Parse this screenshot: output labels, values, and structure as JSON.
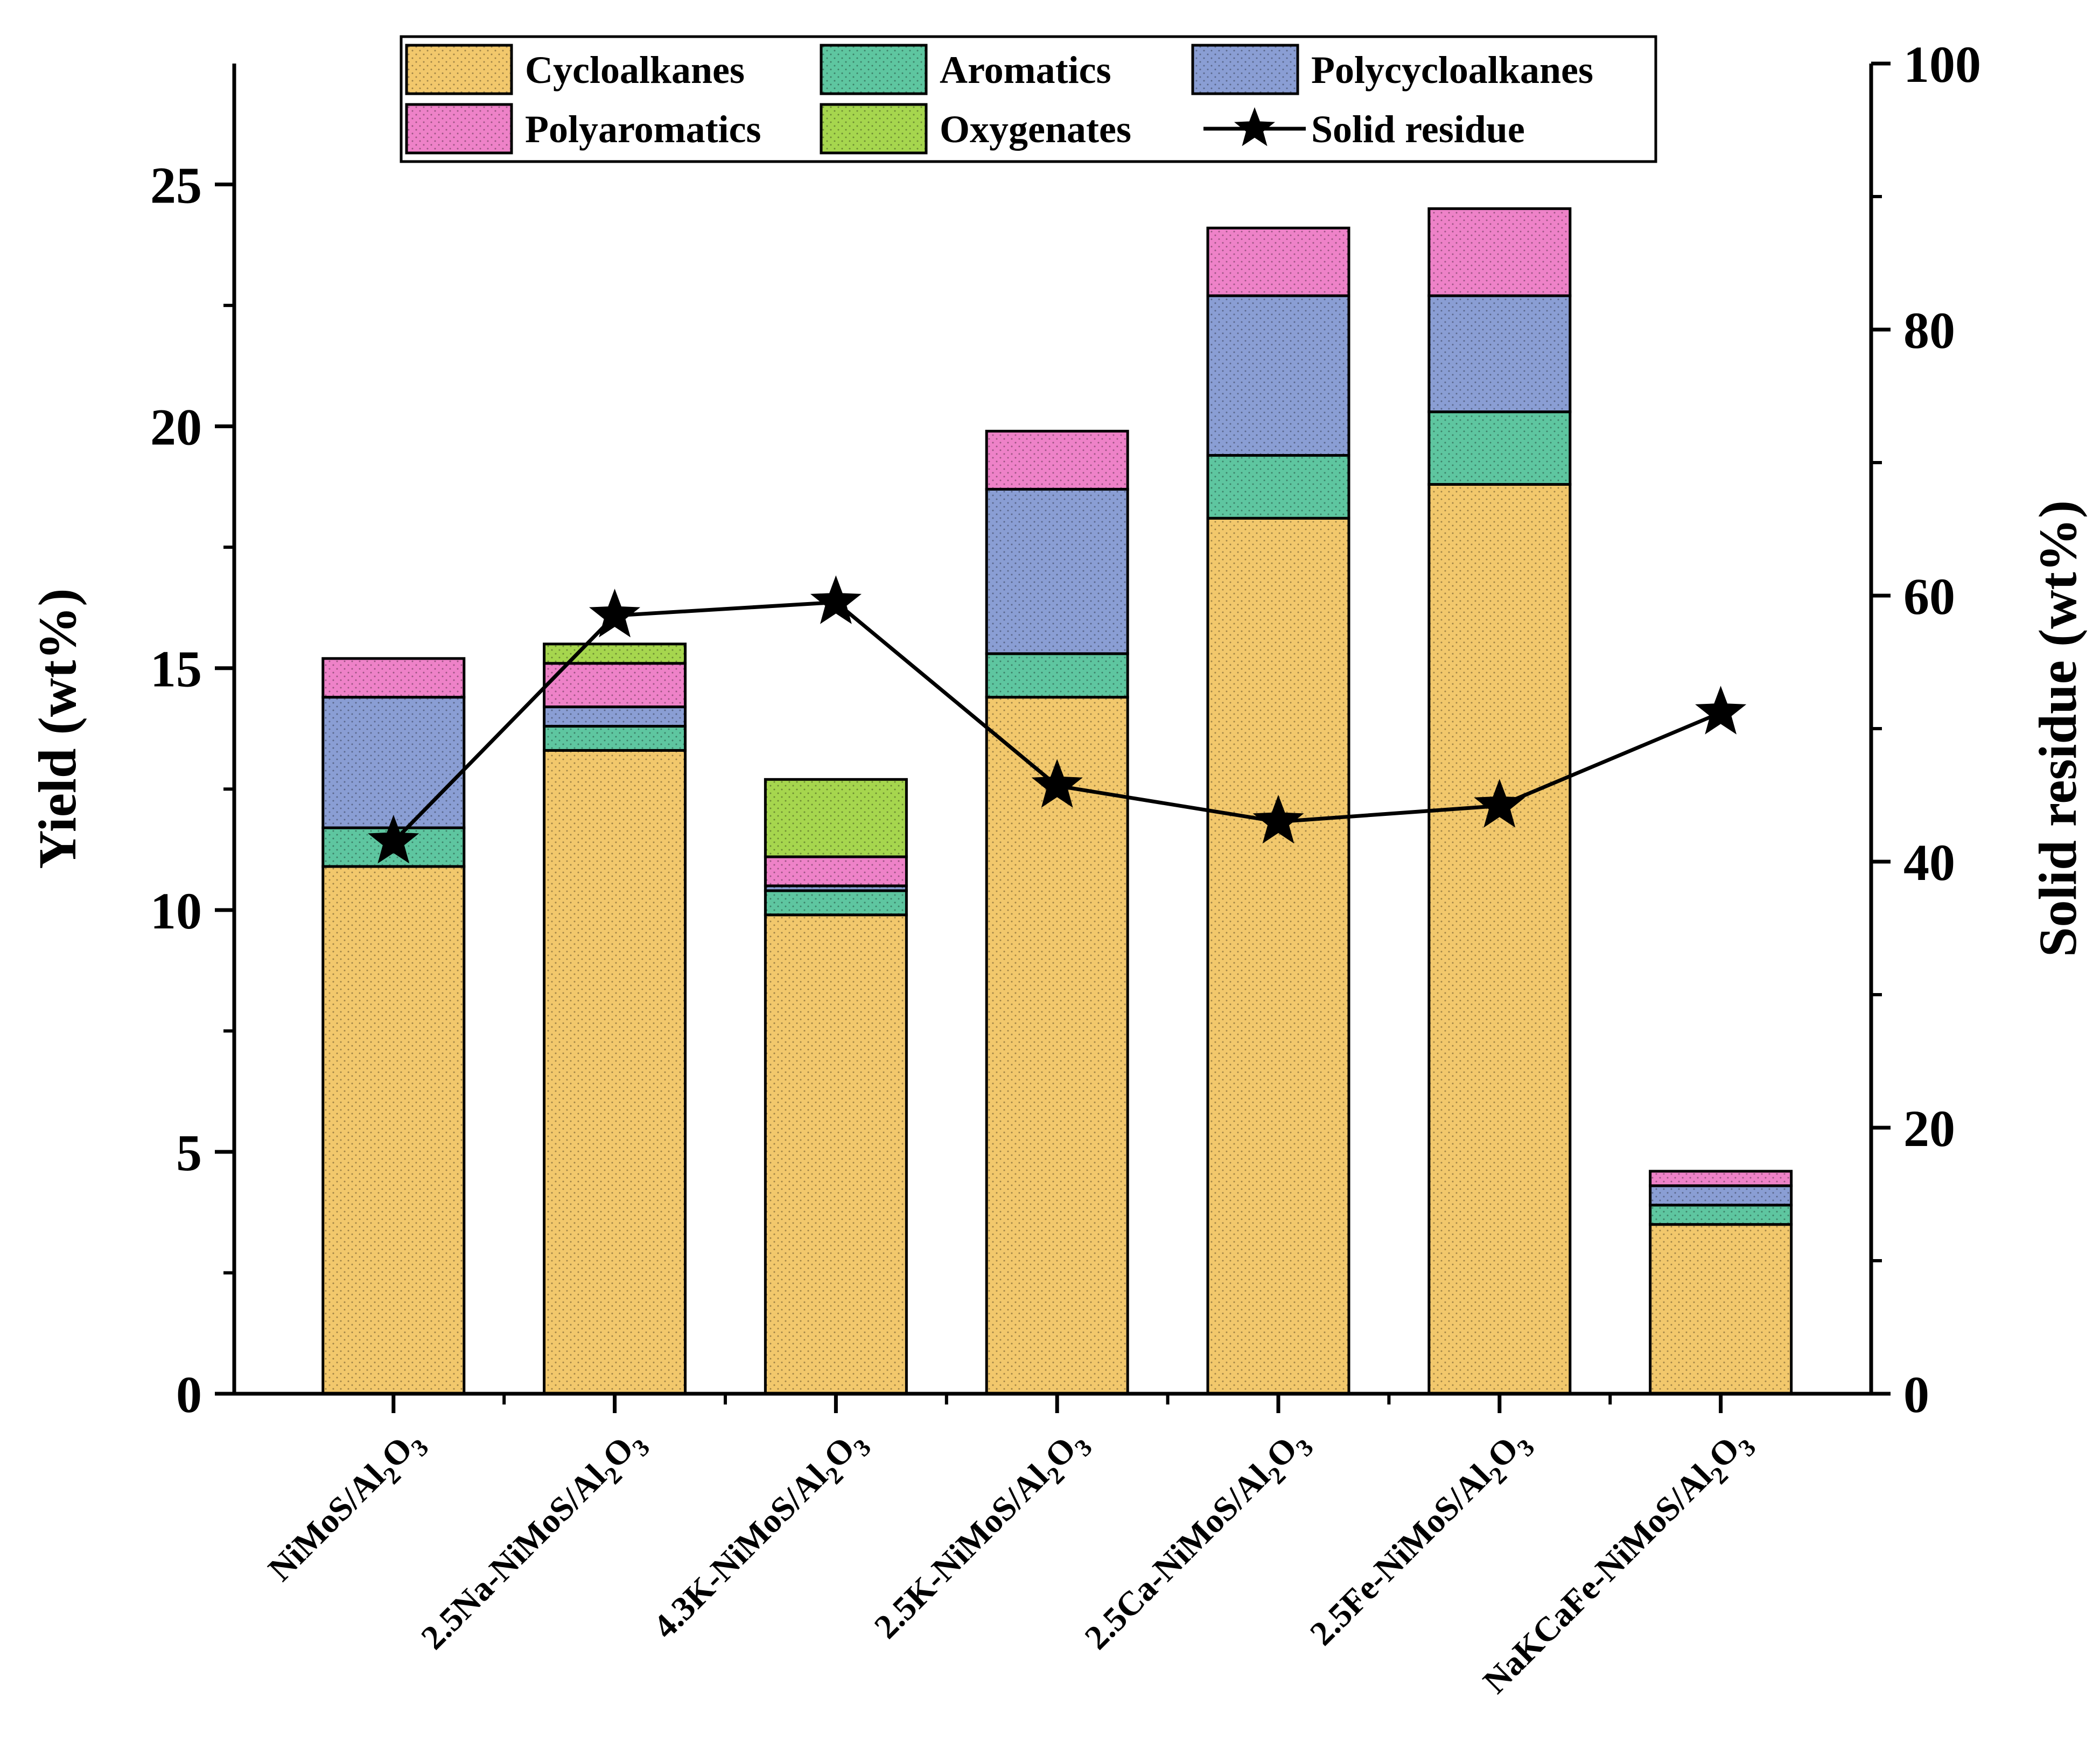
{
  "chart_data": {
    "type": "bar",
    "stacked": true,
    "categories": [
      {
        "main": "NiMoS/Al",
        "sub1": "2",
        "mid": "O",
        "sub2": "3",
        "full": "NiMoS/Al2O3"
      },
      {
        "main": "2.5Na-NiMoS/Al",
        "sub1": "2",
        "mid": "O",
        "sub2": "3",
        "full": "2.5Na-NiMoS/Al2O3"
      },
      {
        "main": "4.3K-NiMoS/Al",
        "sub1": "2",
        "mid": "O",
        "sub2": "3",
        "full": "4.3K-NiMoS/Al2O3"
      },
      {
        "main": "2.5K-NiMoS/Al",
        "sub1": "2",
        "mid": "O",
        "sub2": "3",
        "full": "2.5K-NiMoS/Al2O3"
      },
      {
        "main": "2.5Ca-NiMoS/Al",
        "sub1": "2",
        "mid": "O",
        "sub2": "3",
        "full": "2.5Ca-NiMoS/Al2O3"
      },
      {
        "main": "2.5Fe-NiMoS/Al",
        "sub1": "2",
        "mid": "O",
        "sub2": "3",
        "full": "2.5Fe-NiMoS/Al2O3"
      },
      {
        "main": "NaKCaFe-NiMoS/Al",
        "sub1": "2",
        "mid": "O",
        "sub2": "3",
        "full": "NaKCaFe-NiMoS/Al2O3"
      }
    ],
    "series": [
      {
        "name": "Cycloalkanes",
        "color": "#f2c86c",
        "values": [
          10.9,
          13.3,
          9.9,
          14.4,
          18.1,
          18.8,
          3.5
        ]
      },
      {
        "name": "Aromatics",
        "color": "#5ec6a0",
        "values": [
          0.8,
          0.5,
          0.5,
          0.9,
          1.3,
          1.5,
          0.4
        ]
      },
      {
        "name": "Polycycloalkanes",
        "color": "#8a9ed4",
        "values": [
          2.7,
          0.4,
          0.1,
          3.4,
          3.3,
          2.4,
          0.4
        ]
      },
      {
        "name": "Polyaromatics",
        "color": "#ee82c8",
        "values": [
          0.8,
          0.9,
          0.6,
          1.2,
          1.4,
          1.8,
          0.3
        ]
      },
      {
        "name": "Oxygenates",
        "color": "#a6d64e",
        "values": [
          0,
          0.4,
          1.6,
          0,
          0,
          0,
          0
        ]
      }
    ],
    "line_series": {
      "name": "Solid residue",
      "axis": "right",
      "marker": "star",
      "values": [
        41.5,
        58.5,
        59.5,
        45.7,
        43.0,
        44.2,
        51.2
      ]
    },
    "ylabel": "Yield (wt%)",
    "ylabel_right": "Solid residue (wt%)",
    "xlabel": "",
    "ylim": [
      0,
      27.5
    ],
    "ylim_right": [
      0,
      100
    ],
    "yticks": [
      0,
      5,
      10,
      15,
      20,
      25
    ],
    "yticks_right": [
      0,
      20,
      40,
      60,
      80,
      100
    ],
    "legend": {
      "placement": "top-center",
      "entries": [
        "Cycloalkanes",
        "Aromatics",
        "Polycycloalkanes",
        "Polyaromatics",
        "Oxygenates",
        "Solid residue"
      ]
    }
  }
}
